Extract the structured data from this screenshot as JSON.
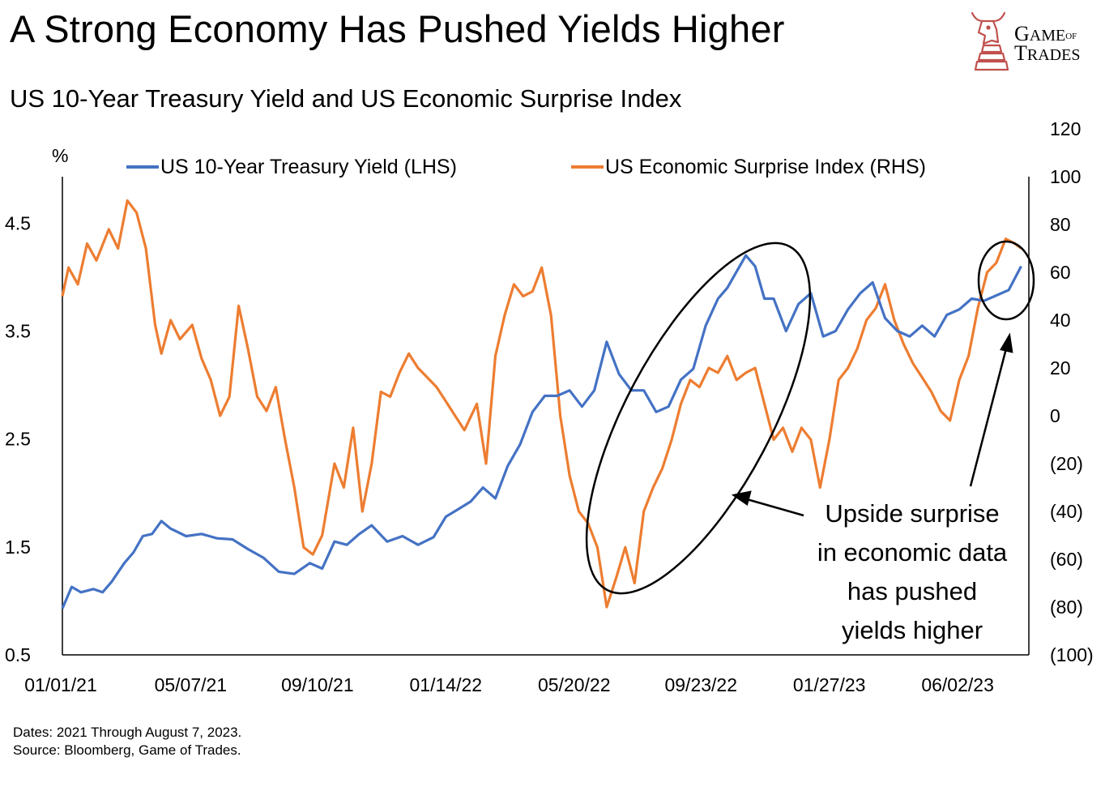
{
  "header": {
    "title": "A Strong Economy Has Pushed Yields Higher",
    "subtitle": "US 10-Year Treasury Yield and US Economic Surprise Index"
  },
  "logo": {
    "line1_big": "G",
    "line1_rest": "AME",
    "line1_small": "OF",
    "line2_big": "T",
    "line2_rest": "RADES"
  },
  "footnote": {
    "dates": "Dates: 2021 Through August 7, 2023.",
    "source": "Source: Bloomberg, Game of Trades."
  },
  "colors": {
    "yield": "#4472C4",
    "surprise": "#ED7D31",
    "logo": "#C0504D"
  },
  "chart_data": {
    "type": "line",
    "title": "US 10-Year Treasury Yield and US Economic Surprise Index",
    "left_axis_unit": "%",
    "left_axis": {
      "min": 0.5,
      "max": 4.93,
      "ticks": [
        "0.5",
        "1.5",
        "2.5",
        "3.5",
        "4.5"
      ],
      "tick_values": [
        0.5,
        1.5,
        2.5,
        3.5,
        4.5
      ]
    },
    "right_axis": {
      "min": -100,
      "max": 100,
      "ticks": [
        "(100)",
        "(80)",
        "(60)",
        "(40)",
        "(20)",
        "0",
        "20",
        "40",
        "60",
        "80",
        "100",
        "120"
      ],
      "tick_values": [
        -100,
        -80,
        -60,
        -40,
        -20,
        0,
        20,
        40,
        60,
        80,
        100,
        120
      ]
    },
    "x_ticks": [
      "01/01/21",
      "05/07/21",
      "09/10/21",
      "01/14/22",
      "05/20/22",
      "09/23/22",
      "01/27/23",
      "06/02/23"
    ],
    "x_range_months": [
      0,
      31.25
    ],
    "x_tick_months": [
      0,
      4.2,
      8.3,
      12.45,
      16.6,
      20.7,
      24.85,
      29.0
    ],
    "series": [
      {
        "name": "US 10-Year Treasury Yield (LHS)",
        "axis": "left",
        "x": [
          0,
          0.3,
          0.6,
          1.0,
          1.3,
          1.6,
          2.0,
          2.3,
          2.6,
          2.9,
          3.2,
          3.5,
          4.0,
          4.5,
          5.0,
          5.5,
          6.0,
          6.5,
          7.0,
          7.5,
          8.0,
          8.4,
          8.8,
          9.2,
          9.6,
          10.0,
          10.5,
          11.0,
          11.5,
          12.0,
          12.4,
          12.8,
          13.2,
          13.6,
          14.0,
          14.4,
          14.8,
          15.2,
          15.6,
          16.0,
          16.4,
          16.8,
          17.2,
          17.6,
          18.0,
          18.4,
          18.8,
          19.2,
          19.6,
          20.0,
          20.4,
          20.8,
          21.2,
          21.5,
          21.8,
          22.1,
          22.4,
          22.7,
          23.0,
          23.4,
          23.8,
          24.2,
          24.6,
          25.0,
          25.4,
          25.8,
          26.2,
          26.6,
          27.0,
          27.4,
          27.8,
          28.2,
          28.6,
          29.0,
          29.4,
          29.8,
          30.2,
          30.6,
          31.0
        ],
        "y": [
          0.93,
          1.13,
          1.08,
          1.11,
          1.08,
          1.18,
          1.35,
          1.45,
          1.6,
          1.62,
          1.74,
          1.67,
          1.6,
          1.62,
          1.58,
          1.57,
          1.48,
          1.4,
          1.27,
          1.25,
          1.35,
          1.3,
          1.55,
          1.52,
          1.62,
          1.7,
          1.55,
          1.6,
          1.52,
          1.59,
          1.78,
          1.85,
          1.92,
          2.05,
          1.95,
          2.25,
          2.45,
          2.75,
          2.9,
          2.9,
          2.95,
          2.8,
          2.95,
          3.4,
          3.1,
          2.95,
          2.95,
          2.75,
          2.8,
          3.05,
          3.15,
          3.55,
          3.8,
          3.9,
          4.05,
          4.2,
          4.1,
          3.8,
          3.8,
          3.5,
          3.75,
          3.85,
          3.45,
          3.5,
          3.7,
          3.85,
          3.95,
          3.62,
          3.5,
          3.45,
          3.55,
          3.45,
          3.65,
          3.7,
          3.8,
          3.78,
          3.83,
          3.88,
          4.1
        ]
      },
      {
        "name": "US Economic Surprise Index (RHS)",
        "axis": "right",
        "x": [
          0,
          0.2,
          0.5,
          0.8,
          1.1,
          1.5,
          1.8,
          2.1,
          2.4,
          2.7,
          3.0,
          3.2,
          3.5,
          3.8,
          4.2,
          4.5,
          4.8,
          5.1,
          5.4,
          5.7,
          6.0,
          6.3,
          6.6,
          6.9,
          7.2,
          7.5,
          7.8,
          8.1,
          8.4,
          8.8,
          9.1,
          9.4,
          9.7,
          10.0,
          10.3,
          10.6,
          10.9,
          11.2,
          11.5,
          11.8,
          12.1,
          12.4,
          12.7,
          13.0,
          13.4,
          13.7,
          14.0,
          14.3,
          14.6,
          14.9,
          15.2,
          15.5,
          15.8,
          16.1,
          16.4,
          16.7,
          17.0,
          17.3,
          17.6,
          17.9,
          18.2,
          18.5,
          18.8,
          19.1,
          19.4,
          19.7,
          20.0,
          20.3,
          20.6,
          20.9,
          21.2,
          21.5,
          21.8,
          22.1,
          22.4,
          22.7,
          23.0,
          23.3,
          23.6,
          23.9,
          24.2,
          24.5,
          24.8,
          25.1,
          25.4,
          25.7,
          26.0,
          26.3,
          26.6,
          26.9,
          27.2,
          27.5,
          27.8,
          28.1,
          28.4,
          28.7,
          29.0,
          29.3,
          29.6,
          29.9,
          30.2,
          30.5,
          30.8,
          31.0
        ],
        "y": [
          50,
          62,
          55,
          72,
          65,
          78,
          70,
          90,
          85,
          70,
          38,
          26,
          40,
          32,
          38,
          24,
          15,
          0,
          8,
          46,
          28,
          8,
          2,
          12,
          -10,
          -30,
          -55,
          -58,
          -50,
          -20,
          -30,
          -5,
          -40,
          -20,
          10,
          8,
          18,
          26,
          20,
          16,
          12,
          6,
          0,
          -6,
          5,
          -20,
          25,
          42,
          55,
          50,
          52,
          62,
          42,
          0,
          -25,
          -40,
          -45,
          -55,
          -80,
          -68,
          -55,
          -70,
          -40,
          -30,
          -22,
          -10,
          5,
          15,
          12,
          20,
          18,
          25,
          15,
          18,
          20,
          5,
          -10,
          -5,
          -15,
          -5,
          -10,
          -30,
          -10,
          15,
          20,
          28,
          40,
          45,
          55,
          40,
          30,
          22,
          16,
          10,
          2,
          -2,
          15,
          25,
          45,
          60,
          64,
          74,
          72,
          70
        ]
      }
    ],
    "annotations": {
      "callout_lines": [
        "Upside surprise",
        "in economic data",
        "has pushed",
        "yields higher"
      ]
    }
  }
}
